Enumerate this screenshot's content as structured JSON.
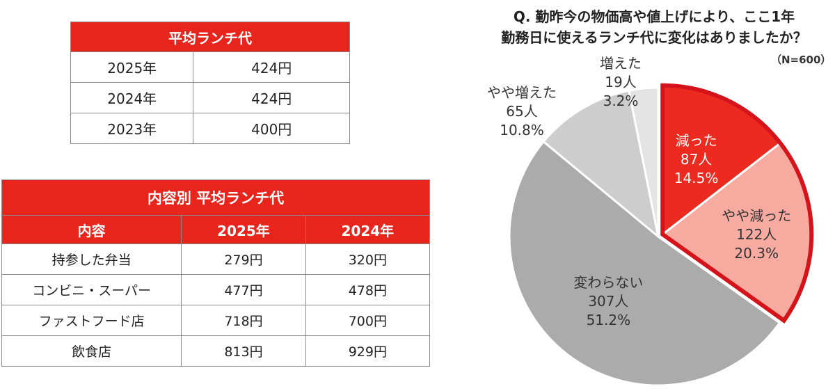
{
  "table1": {
    "title": "平均ランチ代",
    "rows": [
      {
        "year": "2025年",
        "value": "424円"
      },
      {
        "year": "2024年",
        "value": "424円"
      },
      {
        "year": "2023年",
        "value": "400円"
      }
    ]
  },
  "table2": {
    "title": "内容別 平均ランチ代",
    "headers": [
      "内容",
      "2025年",
      "2024年"
    ],
    "rows": [
      {
        "item": "持参した弁当",
        "y2025": "279円",
        "y2024": "320円"
      },
      {
        "item": "コンビニ・スーパー",
        "y2025": "477円",
        "y2024": "478円"
      },
      {
        "item": "ファストフード店",
        "y2025": "718円",
        "y2024": "700円"
      },
      {
        "item": "飲食店",
        "y2025": "813円",
        "y2024": "929円"
      }
    ]
  },
  "question": {
    "line1": "Q. 勤昨今の物価高や値上げにより、ここ1年",
    "line2": "勤務日に使えるランチ代に変化はありましたか？",
    "n": "（N=600）"
  },
  "colors": {
    "accent": "#e8251c",
    "decreased": "#ed2a1f",
    "slightly_decreased": "#f6aaa0",
    "unchanged": "#ababab",
    "slightly_increased": "#cdcdcd",
    "increased": "#e4e4e4"
  },
  "chart_data": [
    {
      "type": "table",
      "title": "平均ランチ代",
      "columns": [
        "年",
        "平均ランチ代"
      ],
      "rows": [
        [
          "2025年",
          424
        ],
        [
          "2024年",
          424
        ],
        [
          "2023年",
          400
        ]
      ],
      "unit": "円"
    },
    {
      "type": "table",
      "title": "内容別 平均ランチ代",
      "columns": [
        "内容",
        "2025年",
        "2024年"
      ],
      "rows": [
        [
          "持参した弁当",
          279,
          320
        ],
        [
          "コンビニ・スーパー",
          477,
          478
        ],
        [
          "ファストフード店",
          718,
          700
        ],
        [
          "飲食店",
          813,
          929
        ]
      ],
      "unit": "円"
    },
    {
      "type": "pie",
      "title": "Q. 勤昨今の物価高や値上げにより、ここ1年 勤務日に使えるランチ代に変化はありましたか？",
      "n": 600,
      "slices": [
        {
          "label": "減った",
          "count": 87,
          "percent": 14.5,
          "count_label": "87人",
          "percent_label": "14.5%"
        },
        {
          "label": "やや減った",
          "count": 122,
          "percent": 20.3,
          "count_label": "122人",
          "percent_label": "20.3%"
        },
        {
          "label": "変わらない",
          "count": 307,
          "percent": 51.2,
          "count_label": "307人",
          "percent_label": "51.2%"
        },
        {
          "label": "やや増えた",
          "count": 65,
          "percent": 10.8,
          "count_label": "65人",
          "percent_label": "10.8%"
        },
        {
          "label": "増えた",
          "count": 19,
          "percent": 3.2,
          "count_label": "19人",
          "percent_label": "3.2%"
        }
      ]
    }
  ]
}
